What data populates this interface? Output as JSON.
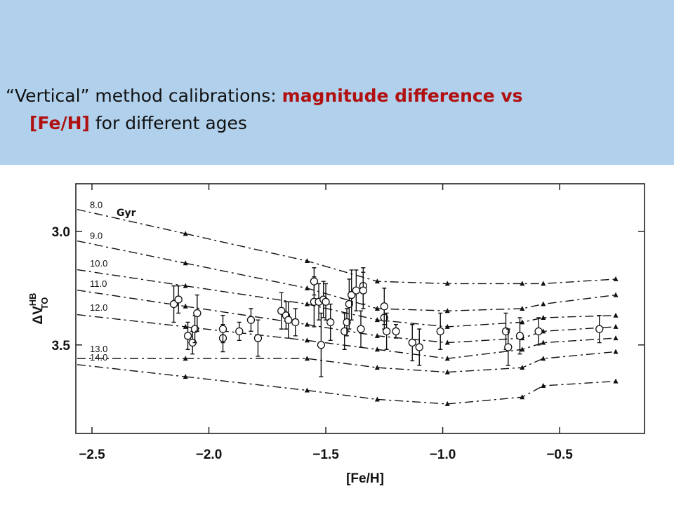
{
  "slide": {
    "background": "#b0d0ec",
    "title_lines": [
      [
        {
          "text": "“Vertical” method calibrations: ",
          "color": "#111111"
        },
        {
          "text": "magnitude difference vs",
          "color": "#b01010",
          "bold": true
        }
      ],
      [
        {
          "text": "[Fe/H]",
          "color": "#b01010",
          "bold": true
        },
        {
          "text": " for different ages",
          "color": "#111111"
        }
      ]
    ]
  },
  "chart_data": {
    "type": "scatter",
    "xlabel": "[Fe/H]",
    "ylabel": {
      "base": "ΔV",
      "sup": "HB",
      "sub": "TO"
    },
    "annotation": "Gyr",
    "xlim": [
      -2.569,
      -0.137
    ],
    "ylim": [
      3.89,
      2.79
    ],
    "xticks": [
      {
        "value": -2.5,
        "label": "−2.5"
      },
      {
        "value": -2.0,
        "label": "−2.0"
      },
      {
        "value": -1.5,
        "label": "−1.5"
      },
      {
        "value": -1.0,
        "label": "−1.0"
      },
      {
        "value": -0.5,
        "label": "−0.5"
      }
    ],
    "yticks": [
      {
        "value": 3.0,
        "label": "3.0"
      },
      {
        "value": 3.5,
        "label": "3.5"
      }
    ],
    "series": [
      {
        "name": "8.0",
        "type": "line",
        "color": "#111111",
        "x": [
          -2.1,
          -1.58,
          -1.28,
          -0.98,
          -0.66,
          -0.57,
          -0.26
        ],
        "values": [
          3.01,
          3.13,
          3.22,
          3.23,
          3.23,
          3.23,
          3.21
        ]
      },
      {
        "name": "9.0",
        "type": "line",
        "color": "#111111",
        "x": [
          -2.1,
          -1.58,
          -1.28,
          -0.98,
          -0.66,
          -0.57,
          -0.26
        ],
        "values": [
          3.14,
          3.25,
          3.34,
          3.35,
          3.34,
          3.32,
          3.28
        ]
      },
      {
        "name": "10.0",
        "type": "line",
        "color": "#111111",
        "x": [
          -2.1,
          -1.58,
          -1.28,
          -0.98,
          -0.66,
          -0.57,
          -0.26
        ],
        "values": [
          3.24,
          3.32,
          3.39,
          3.42,
          3.4,
          3.38,
          3.37
        ]
      },
      {
        "name": "11.0",
        "type": "line",
        "color": "#111111",
        "x": [
          -2.1,
          -1.58,
          -1.28,
          -0.98,
          -0.66,
          -0.57,
          -0.26
        ],
        "values": [
          3.33,
          3.41,
          3.46,
          3.49,
          3.47,
          3.44,
          3.42
        ]
      },
      {
        "name": "12.0",
        "type": "line",
        "color": "#111111",
        "x": [
          -2.1,
          -1.58,
          -1.28,
          -0.98,
          -0.66,
          -0.57,
          -0.26
        ],
        "values": [
          3.42,
          3.48,
          3.52,
          3.56,
          3.52,
          3.49,
          3.47
        ]
      },
      {
        "name": "13.0",
        "type": "line",
        "color": "#111111",
        "x": [
          -2.1,
          -1.58,
          -1.28,
          -0.98,
          -0.66,
          -0.57,
          -0.26
        ],
        "values": [
          3.56,
          3.56,
          3.6,
          3.62,
          3.6,
          3.56,
          3.53
        ]
      },
      {
        "name": "14.0",
        "type": "line",
        "color": "#111111",
        "x": [
          -2.1,
          -1.58,
          -1.28,
          -0.98,
          -0.66,
          -0.57,
          -0.26
        ],
        "values": [
          3.64,
          3.7,
          3.74,
          3.76,
          3.73,
          3.68,
          3.66
        ]
      },
      {
        "type": "scatter",
        "color": "#111111",
        "x": [
          -2.15,
          -2.13,
          -2.09,
          -2.07,
          -2.06,
          -2.05,
          -1.94,
          -1.94,
          -1.87,
          -1.82,
          -1.79,
          -1.69,
          -1.67,
          -1.66,
          -1.63,
          -1.55,
          -1.55,
          -1.53,
          -1.52,
          -1.51,
          -1.5,
          -1.48,
          -1.42,
          -1.41,
          -1.4,
          -1.39,
          -1.37,
          -1.35,
          -1.34,
          -1.34,
          -1.25,
          -1.25,
          -1.24,
          -1.2,
          -1.13,
          -1.1,
          -1.01,
          -0.73,
          -0.72,
          -0.67,
          -0.59,
          -0.33
        ],
        "values": [
          3.32,
          3.3,
          3.46,
          3.49,
          3.43,
          3.36,
          3.47,
          3.43,
          3.44,
          3.39,
          3.47,
          3.35,
          3.37,
          3.39,
          3.4,
          3.31,
          3.22,
          3.31,
          3.5,
          3.3,
          3.31,
          3.4,
          3.44,
          3.4,
          3.32,
          3.28,
          3.26,
          3.43,
          3.24,
          3.26,
          3.38,
          3.33,
          3.44,
          3.44,
          3.49,
          3.51,
          3.44,
          3.44,
          3.51,
          3.46,
          3.44,
          3.43
        ],
        "errors": [
          0.08,
          0.06,
          0.06,
          0.05,
          0.06,
          0.08,
          0.06,
          0.06,
          0.04,
          0.05,
          0.08,
          0.08,
          0.06,
          0.08,
          0.06,
          0.11,
          0.06,
          0.08,
          0.14,
          0.08,
          0.08,
          0.08,
          0.08,
          0.06,
          0.11,
          0.11,
          0.09,
          0.08,
          0.08,
          0.08,
          0.05,
          0.08,
          0.08,
          0.03,
          0.08,
          0.08,
          0.08,
          0.08,
          0.08,
          0.08,
          0.06,
          0.06
        ]
      }
    ]
  }
}
